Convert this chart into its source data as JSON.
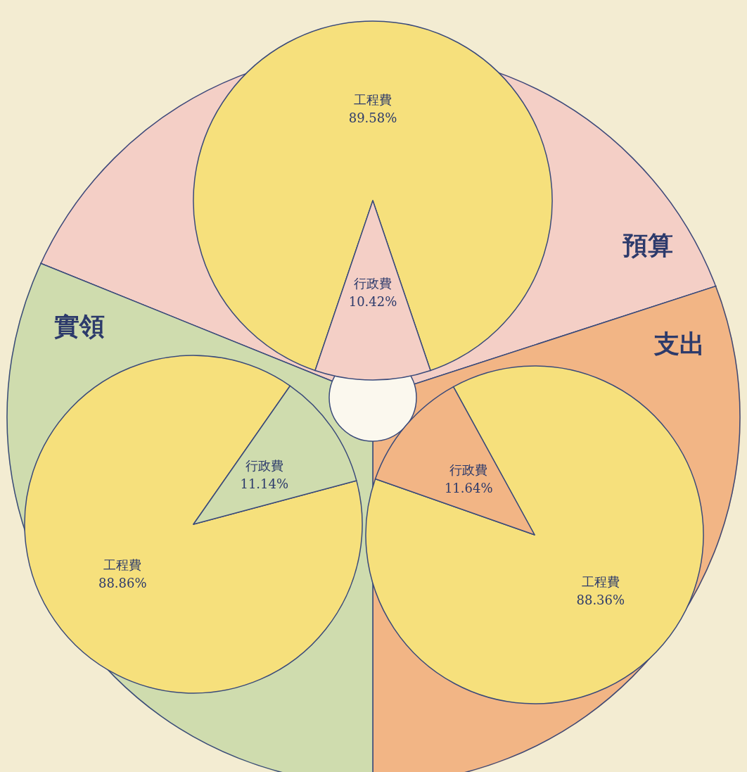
{
  "chart_data": [
    {
      "type": "pie",
      "title": "預算",
      "categories": [
        "工程費",
        "行政費"
      ],
      "values": [
        89.58,
        10.42
      ],
      "value_labels": [
        "89.58%",
        "10.42%"
      ],
      "colors": [
        "#f6e07c",
        "#f4cfc6"
      ]
    },
    {
      "type": "pie",
      "title": "支出",
      "categories": [
        "工程費",
        "行政費"
      ],
      "values": [
        88.36,
        11.64
      ],
      "value_labels": [
        "88.36%",
        "11.64%"
      ],
      "colors": [
        "#f6e07c",
        "#f2b585"
      ]
    },
    {
      "type": "pie",
      "title": "實領",
      "categories": [
        "工程費",
        "行政費"
      ],
      "values": [
        88.86,
        11.14
      ],
      "value_labels": [
        "88.86%",
        "11.14%"
      ],
      "colors": [
        "#f6e07c",
        "#cfdcae"
      ]
    }
  ]
}
